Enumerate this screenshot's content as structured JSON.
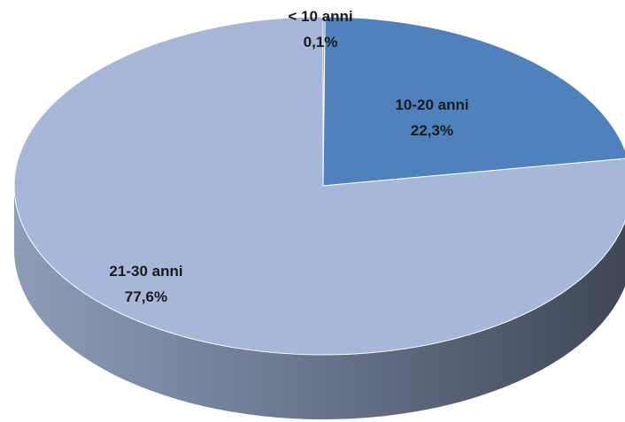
{
  "chart_data": {
    "type": "pie",
    "title": "",
    "slices": [
      {
        "label": "< 10 anni",
        "value": 0.1,
        "value_label": "0,1%",
        "color": "#4f81bd"
      },
      {
        "label": "10-20 anni",
        "value": 22.3,
        "value_label": "22,3%",
        "color": "#4f81bd"
      },
      {
        "label": "21-30 anni",
        "value": 77.6,
        "value_label": "77,6%",
        "color": "#a7b7d9"
      }
    ],
    "style": "3d",
    "legend": "none"
  }
}
